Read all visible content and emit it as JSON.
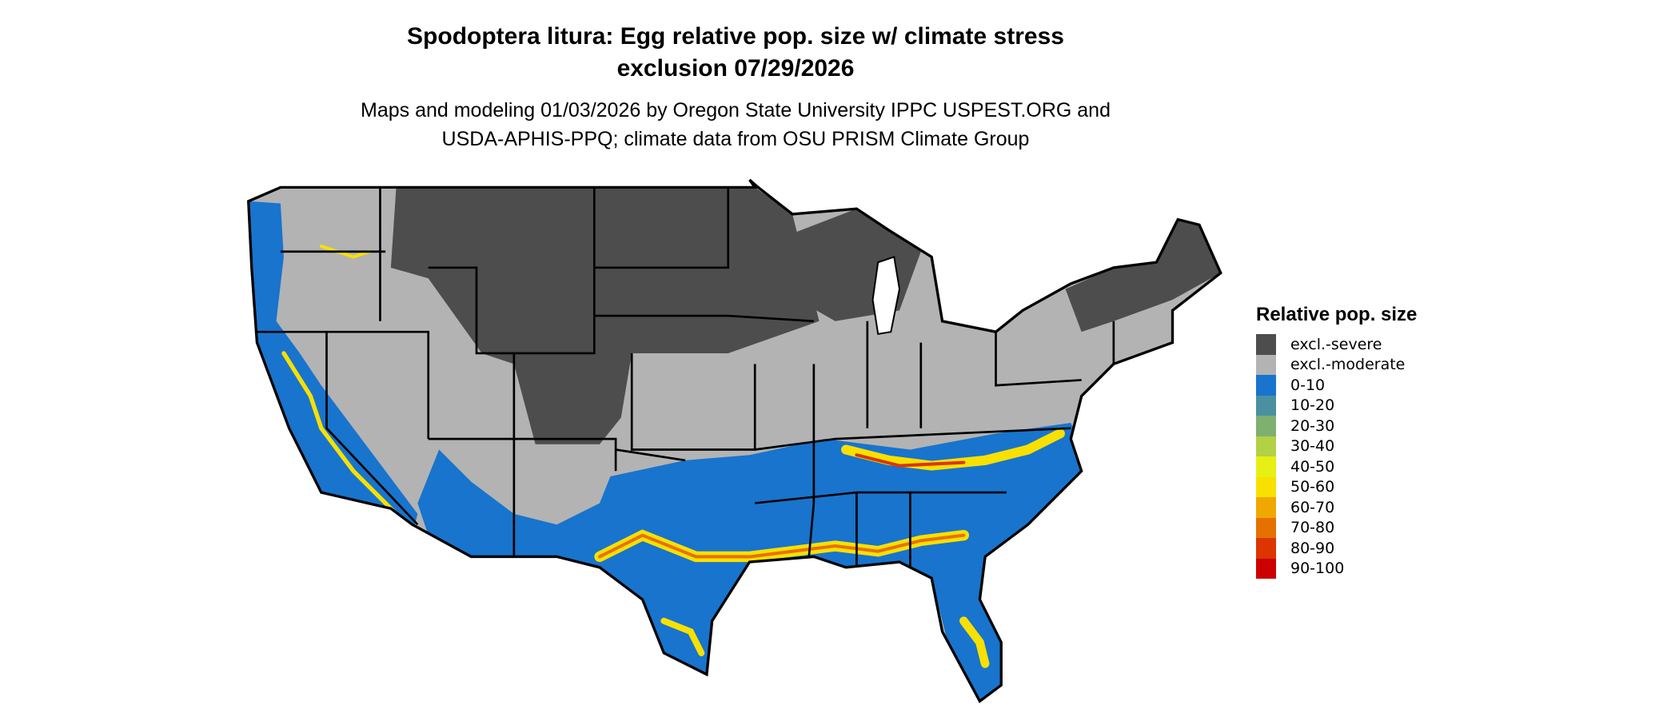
{
  "title": {
    "line1": "Spodoptera litura: Egg relative pop. size w/ climate stress",
    "line2": "exclusion 07/29/2026"
  },
  "subtitle": {
    "line1": "Maps and modeling 01/03/2026 by Oregon State University IPPC USPEST.ORG and",
    "line2": "USDA-APHIS-PPQ; climate data from OSU PRISM Climate Group"
  },
  "legend": {
    "title": "Relative pop. size",
    "items": [
      {
        "label": "excl.-severe",
        "color": "#4d4d4d"
      },
      {
        "label": "excl.-moderate",
        "color": "#b3b3b3"
      },
      {
        "label": "0-10",
        "color": "#1874cd"
      },
      {
        "label": "10-20",
        "color": "#4a90a0"
      },
      {
        "label": "20-30",
        "color": "#7eb070"
      },
      {
        "label": "30-40",
        "color": "#b2d145"
      },
      {
        "label": "40-50",
        "color": "#e6f014"
      },
      {
        "label": "50-60",
        "color": "#f8e000"
      },
      {
        "label": "60-70",
        "color": "#f0a800"
      },
      {
        "label": "70-80",
        "color": "#e57200"
      },
      {
        "label": "80-90",
        "color": "#dc3500"
      },
      {
        "label": "90-100",
        "color": "#cc0000"
      }
    ]
  }
}
